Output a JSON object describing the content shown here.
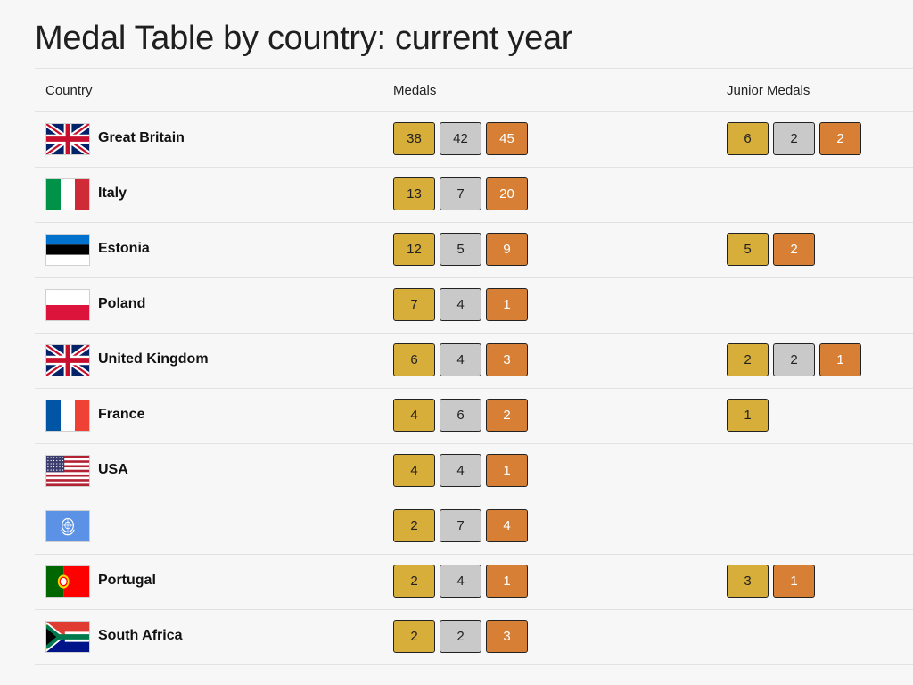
{
  "page": {
    "title": "Medal Table by country: current year"
  },
  "columns": {
    "country": "Country",
    "medals": "Medals",
    "junior": "Junior Medals"
  },
  "colors": {
    "gold": "#d8ae3a",
    "silver": "#c9c9c9",
    "bronze": "#d67f35"
  },
  "rows": [
    {
      "flag": "gb",
      "country": "Great Britain",
      "medals": {
        "gold": "38",
        "silver": "42",
        "bronze": "45"
      },
      "junior": [
        {
          "type": "gold",
          "value": "6"
        },
        {
          "type": "silver",
          "value": "2"
        },
        {
          "type": "bronze",
          "value": "2"
        }
      ]
    },
    {
      "flag": "it",
      "country": "Italy",
      "medals": {
        "gold": "13",
        "silver": "7",
        "bronze": "20"
      },
      "junior": []
    },
    {
      "flag": "ee",
      "country": "Estonia",
      "medals": {
        "gold": "12",
        "silver": "5",
        "bronze": "9"
      },
      "junior": [
        {
          "type": "gold",
          "value": "5"
        },
        {
          "type": "bronze",
          "value": "2"
        }
      ]
    },
    {
      "flag": "pl",
      "country": "Poland",
      "medals": {
        "gold": "7",
        "silver": "4",
        "bronze": "1"
      },
      "junior": []
    },
    {
      "flag": "gb",
      "country": "United Kingdom",
      "medals": {
        "gold": "6",
        "silver": "4",
        "bronze": "3"
      },
      "junior": [
        {
          "type": "gold",
          "value": "2"
        },
        {
          "type": "silver",
          "value": "2"
        },
        {
          "type": "bronze",
          "value": "1"
        }
      ]
    },
    {
      "flag": "fr",
      "country": "France",
      "medals": {
        "gold": "4",
        "silver": "6",
        "bronze": "2"
      },
      "junior": [
        {
          "type": "gold",
          "value": "1"
        }
      ]
    },
    {
      "flag": "us",
      "country": "USA",
      "medals": {
        "gold": "4",
        "silver": "4",
        "bronze": "1"
      },
      "junior": []
    },
    {
      "flag": "un",
      "country": "",
      "medals": {
        "gold": "2",
        "silver": "7",
        "bronze": "4"
      },
      "junior": []
    },
    {
      "flag": "pt",
      "country": "Portugal",
      "medals": {
        "gold": "2",
        "silver": "4",
        "bronze": "1"
      },
      "junior": [
        {
          "type": "gold",
          "value": "3"
        },
        {
          "type": "bronze",
          "value": "1"
        }
      ]
    },
    {
      "flag": "za",
      "country": "South Africa",
      "medals": {
        "gold": "2",
        "silver": "2",
        "bronze": "3"
      },
      "junior": []
    }
  ]
}
